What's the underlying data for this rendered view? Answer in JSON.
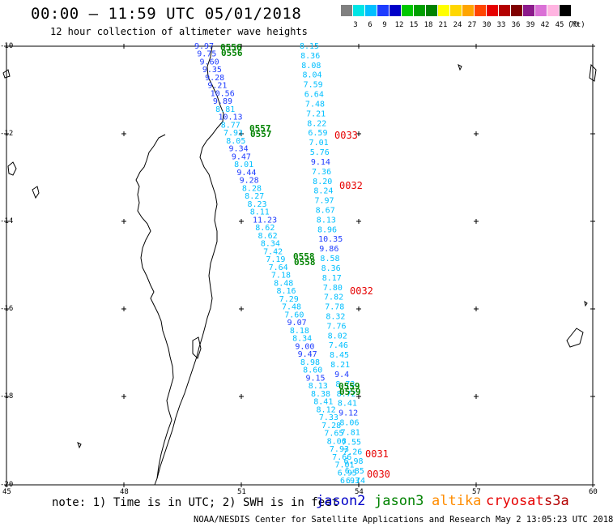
{
  "header": {
    "title": "00:00 – 11:59 UTC 05/01/2018",
    "subtitle": "12 hour collection of altimeter wave heights"
  },
  "legend": {
    "colors": [
      "#808080",
      "#00e5e5",
      "#00bfff",
      "#1e3cff",
      "#0000c8",
      "#00c800",
      "#00a000",
      "#008200",
      "#ffff00",
      "#ffd700",
      "#ffa500",
      "#ff4500",
      "#e60000",
      "#b40000",
      "#800000",
      "#8b1a8b",
      "#da70d6",
      "#ffb4e1",
      "#000000"
    ],
    "labels": [
      "3",
      "6",
      "9",
      "12",
      "15",
      "18",
      "21",
      "24",
      "27",
      "30",
      "33",
      "36",
      "39",
      "42",
      "45",
      "70"
    ],
    "unit": "(ft)"
  },
  "axes": {
    "lat_labels": [
      "-10",
      "-12",
      "-14",
      "-16",
      "-18",
      "-20"
    ],
    "lon_labels": [
      "45",
      "48",
      "51",
      "54",
      "57",
      "60"
    ]
  },
  "track_values": {
    "left": [
      "9.97",
      "9.75",
      "9.60",
      "9.35",
      "9.28",
      "9.21",
      "10.56",
      "9.89",
      "8.81",
      "10.13",
      "8.77",
      "7.93",
      "8.05",
      "9.34",
      "9.47",
      "8.01",
      "9.44",
      "9.28",
      "8.28",
      "8.27",
      "8.23",
      "8.11",
      "11.23",
      "8.62",
      "8.62",
      "8.34",
      "7.42",
      "7.19",
      "7.64",
      "7.18",
      "8.48",
      "8.16",
      "7.29",
      "7.48",
      "7.60",
      "9.07",
      "8.18",
      "8.34",
      "9.00",
      "9.47",
      "8.98",
      "8.60",
      "9.15",
      "8.13",
      "8.38",
      "8.41",
      "8.12",
      "7.33",
      "7.28",
      "7.65",
      "8.06",
      "7.93",
      "7.66",
      "7.01",
      "6.95",
      "6.93"
    ],
    "right": [
      "8.15",
      "8.36",
      "8.08",
      "8.04",
      "7.59",
      "6.64",
      "7.48",
      "7.21",
      "8.22",
      "6.59",
      "7.01",
      "5.76",
      "9.14",
      "7.36",
      "8.20",
      "8.24",
      "7.97",
      "8.67",
      "8.13",
      "8.96",
      "10.35",
      "9.86",
      "8.58",
      "8.36",
      "8.17",
      "7.80",
      "7.82",
      "7.78",
      "8.32",
      "7.76",
      "8.02",
      "7.46",
      "8.45",
      "8.21",
      "9.4",
      "8.73",
      "8.72",
      "8.41",
      "9.12",
      "8.06",
      "7.81",
      "7.55",
      "7.26",
      "6.98",
      "6.85",
      "6.74"
    ]
  },
  "time_labels": {
    "jason3": [
      "0556",
      "0557",
      "0558",
      "0559"
    ],
    "cryosat": [
      "0033",
      "0032",
      "0032",
      "0031",
      "0030"
    ]
  },
  "footer": {
    "note": "note: 1) Time is in UTC; 2) SWH is in feet",
    "satellites": [
      {
        "name": "jason2",
        "color": "#0000c8"
      },
      {
        "name": "jason3",
        "color": "#008200"
      },
      {
        "name": "altika",
        "color": "#ff8c00"
      },
      {
        "name": "cryosat",
        "color": "#e60000"
      },
      {
        "name": "s3a",
        "color": "#b40000"
      }
    ],
    "credit": "NOAA/NESDIS Center for Satellite Applications and Research   May  2 13:05:23 UTC 2018"
  }
}
